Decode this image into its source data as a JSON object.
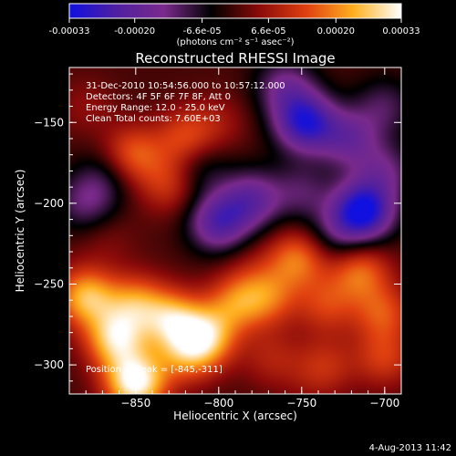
{
  "colorbar": {
    "tick_labels": [
      "-0.00033",
      "-0.00020",
      "-6.6e-05",
      "6.6e-05",
      "0.00020",
      "0.00033"
    ],
    "tick_values": [
      -0.00033,
      -0.0002,
      -6.6e-05,
      6.6e-05,
      0.0002,
      0.00033
    ],
    "range": [
      -0.00033,
      0.00033
    ],
    "unit_label": "(photons cm⁻² s⁻¹ asec⁻²)",
    "palette": [
      "#1010e0",
      "#5020a0",
      "#7a2a8c",
      "#000000",
      "#8a0a0a",
      "#e04010",
      "#ffb020",
      "#ffffff"
    ]
  },
  "info": {
    "time_range": "31-Dec-2010 10:54:56.000 to 10:57:12.000",
    "detectors": "Detectors: 4F 5F 6F 7F 8F, Att 0",
    "energy_range": "Energy Range: 12.0 - 25.0 keV",
    "clean_counts": "Clean    Total counts: 7.60E+03",
    "peak_position": "Position of Peak = [-845,-311]"
  },
  "footer": {
    "date": "4-Aug-2013 11:42"
  },
  "chart_data": {
    "type": "heatmap",
    "title": "Reconstructed RHESSI Image",
    "xlabel": "Heliocentric X (arcsec)",
    "ylabel": "Heliocentric Y (arcsec)",
    "xlim": [
      -890,
      -690
    ],
    "ylim": [
      -318,
      -116
    ],
    "x_ticks": [
      -850,
      -800,
      -750,
      -700
    ],
    "y_ticks": [
      -150,
      -200,
      -250,
      -300
    ],
    "x_tick_labels": [
      "−850",
      "−800",
      "−750",
      "−700"
    ],
    "y_tick_labels": [
      "−150",
      "−200",
      "−250",
      "−300"
    ],
    "value_range": [
      -0.00033,
      0.00033
    ],
    "peak": {
      "x": -845,
      "y": -311
    },
    "features": [
      {
        "x": -850,
        "y": -311,
        "value": 0.00033
      },
      {
        "x": -862,
        "y": -284,
        "value": 0.00026
      },
      {
        "x": -880,
        "y": -258,
        "value": 0.00024
      },
      {
        "x": -850,
        "y": -262,
        "value": 0.00018
      },
      {
        "x": -828,
        "y": -272,
        "value": 0.00022
      },
      {
        "x": -808,
        "y": -283,
        "value": 0.00024
      },
      {
        "x": -820,
        "y": -294,
        "value": 0.00014
      },
      {
        "x": -790,
        "y": -262,
        "value": 0.00016
      },
      {
        "x": -770,
        "y": -258,
        "value": 0.00015
      },
      {
        "x": -752,
        "y": -234,
        "value": 0.00018
      },
      {
        "x": -735,
        "y": -263,
        "value": 0.00012
      },
      {
        "x": -715,
        "y": -242,
        "value": 0.00017
      },
      {
        "x": -701,
        "y": -268,
        "value": 0.00014
      },
      {
        "x": -700,
        "y": -296,
        "value": 0.00012
      },
      {
        "x": -735,
        "y": -300,
        "value": 9e-05
      },
      {
        "x": -768,
        "y": -296,
        "value": 8e-05
      },
      {
        "x": -852,
        "y": -170,
        "value": 0.00016
      },
      {
        "x": -820,
        "y": -160,
        "value": 0.00014
      },
      {
        "x": -830,
        "y": -188,
        "value": 0.00012
      },
      {
        "x": -800,
        "y": -150,
        "value": 6e-05
      },
      {
        "x": -880,
        "y": -140,
        "value": 5e-05
      },
      {
        "x": -868,
        "y": -222,
        "value": 4e-05
      },
      {
        "x": -800,
        "y": -212,
        "value": -0.00022
      },
      {
        "x": -780,
        "y": -198,
        "value": -0.00018
      },
      {
        "x": -750,
        "y": -193,
        "value": -0.0001
      },
      {
        "x": -748,
        "y": -150,
        "value": -0.00028
      },
      {
        "x": -722,
        "y": -160,
        "value": -0.00016
      },
      {
        "x": -713,
        "y": -205,
        "value": -0.00033
      },
      {
        "x": -700,
        "y": -180,
        "value": -0.00012
      },
      {
        "x": -880,
        "y": -200,
        "value": -0.00012
      },
      {
        "x": -868,
        "y": -183,
        "value": -8e-05
      },
      {
        "x": -812,
        "y": -178,
        "value": -9e-05
      },
      {
        "x": -760,
        "y": -128,
        "value": -0.00014
      },
      {
        "x": -700,
        "y": -140,
        "value": -0.0001
      },
      {
        "x": -730,
        "y": -220,
        "value": -0.0001
      },
      {
        "x": -780,
        "y": -240,
        "value": 4e-05
      },
      {
        "x": -745,
        "y": -310,
        "value": 3e-05
      }
    ]
  }
}
